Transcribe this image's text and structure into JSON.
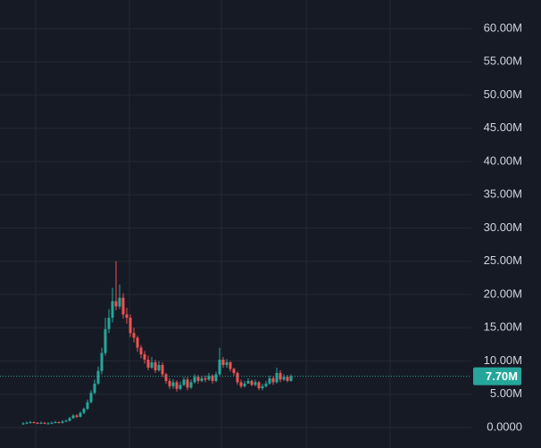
{
  "chart_data": {
    "type": "candlestick",
    "ylim": [
      -3.09,
      64.3
    ],
    "yticks": [
      {
        "value": 0,
        "label": "0.0000"
      },
      {
        "value": 5,
        "label": "5.00M"
      },
      {
        "value": 10,
        "label": "10.00M"
      },
      {
        "value": 15,
        "label": "15.00M"
      },
      {
        "value": 20,
        "label": "20.00M"
      },
      {
        "value": 25,
        "label": "25.00M"
      },
      {
        "value": 30,
        "label": "30.00M"
      },
      {
        "value": 35,
        "label": "35.00M"
      },
      {
        "value": 40,
        "label": "40.00M"
      },
      {
        "value": 45,
        "label": "45.00M"
      },
      {
        "value": 50,
        "label": "50.00M"
      },
      {
        "value": 55,
        "label": "55.00M"
      },
      {
        "value": 60,
        "label": "60.00M"
      }
    ],
    "grid": true,
    "up_color": "#26a69a",
    "down_color": "#ef5350",
    "open": [
      0.5,
      0.6,
      0.7,
      0.8,
      0.7,
      0.6,
      0.7,
      0.6,
      0.6,
      0.7,
      0.8,
      0.7,
      0.9,
      1.0,
      1.4,
      1.8,
      1.6,
      2.2,
      2.8,
      3.8,
      5.2,
      6.6,
      8.5,
      11.2,
      14.8,
      16.5,
      19.0,
      18.2,
      19.5,
      17.0,
      16.5,
      14.2,
      13.5,
      12.0,
      11.0,
      10.2,
      9.0,
      9.8,
      8.6,
      9.4,
      8.0,
      7.0,
      6.2,
      6.8,
      5.8,
      6.4,
      7.2,
      6.0,
      6.8,
      7.6,
      7.0,
      7.4,
      7.2,
      7.8,
      7.0,
      8.0,
      10.2,
      9.4,
      9.8,
      8.8,
      8.2,
      6.8,
      6.2,
      6.6,
      7.0,
      6.4,
      6.8,
      5.9,
      6.2,
      6.6,
      7.4,
      6.8,
      8.2,
      7.2,
      7.6,
      7.0
    ],
    "high": [
      0.8,
      0.9,
      1.0,
      0.9,
      0.8,
      0.9,
      0.8,
      0.8,
      0.9,
      1.0,
      0.9,
      1.1,
      1.2,
      1.6,
      2.0,
      2.0,
      2.4,
      3.0,
      4.2,
      5.6,
      7.2,
      9.2,
      12.0,
      16.5,
      17.8,
      21.0,
      25.0,
      21.5,
      20.2,
      18.0,
      17.0,
      15.0,
      13.8,
      12.4,
      11.5,
      10.8,
      10.6,
      10.2,
      10.0,
      9.8,
      8.2,
      7.4,
      7.3,
      7.1,
      6.9,
      7.6,
      7.6,
      7.2,
      8.0,
      7.9,
      7.8,
      7.8,
      8.2,
      8.0,
      8.4,
      12.0,
      10.6,
      10.3,
      10.0,
      9.0,
      8.4,
      7.2,
      7.0,
      7.4,
      7.2,
      7.2,
      7.0,
      6.6,
      7.0,
      7.8,
      7.7,
      9.0,
      8.6,
      8.0,
      7.9,
      8.0
    ],
    "low": [
      0.4,
      0.5,
      0.6,
      0.6,
      0.5,
      0.5,
      0.5,
      0.5,
      0.5,
      0.6,
      0.6,
      0.6,
      0.8,
      0.9,
      1.3,
      1.4,
      1.5,
      2.0,
      2.6,
      3.6,
      5.0,
      6.4,
      8.0,
      10.8,
      14.2,
      15.8,
      17.6,
      17.8,
      16.4,
      15.6,
      13.6,
      12.8,
      11.4,
      10.4,
      9.6,
      8.6,
      8.8,
      8.2,
      8.4,
      7.6,
      6.6,
      5.8,
      5.8,
      5.4,
      5.6,
      6.2,
      5.6,
      5.8,
      6.6,
      6.6,
      6.8,
      6.8,
      7.0,
      6.6,
      6.8,
      7.8,
      9.0,
      9.0,
      8.4,
      7.8,
      6.4,
      5.9,
      6.0,
      6.6,
      6.2,
      6.2,
      5.6,
      5.6,
      6.0,
      6.4,
      6.4,
      6.6,
      6.8,
      7.0,
      6.8,
      6.9
    ],
    "close": [
      0.6,
      0.7,
      0.8,
      0.7,
      0.6,
      0.7,
      0.6,
      0.6,
      0.7,
      0.8,
      0.7,
      0.9,
      1.0,
      1.4,
      1.8,
      1.6,
      2.2,
      2.8,
      3.8,
      5.2,
      6.6,
      8.5,
      11.2,
      14.8,
      16.5,
      19.0,
      18.2,
      19.5,
      17.0,
      16.5,
      14.2,
      13.5,
      12.0,
      11.0,
      10.2,
      9.0,
      9.8,
      8.6,
      9.4,
      8.0,
      7.0,
      6.2,
      6.8,
      5.8,
      6.4,
      7.2,
      6.0,
      6.8,
      7.6,
      7.0,
      7.4,
      7.2,
      7.8,
      7.0,
      8.0,
      10.2,
      9.4,
      9.8,
      8.8,
      8.2,
      6.8,
      6.2,
      6.6,
      7.0,
      6.4,
      6.8,
      5.9,
      6.2,
      6.6,
      7.4,
      6.8,
      8.2,
      7.2,
      7.6,
      7.0,
      7.7
    ],
    "last_price": {
      "value": 7.7,
      "label": "7.70M"
    }
  }
}
